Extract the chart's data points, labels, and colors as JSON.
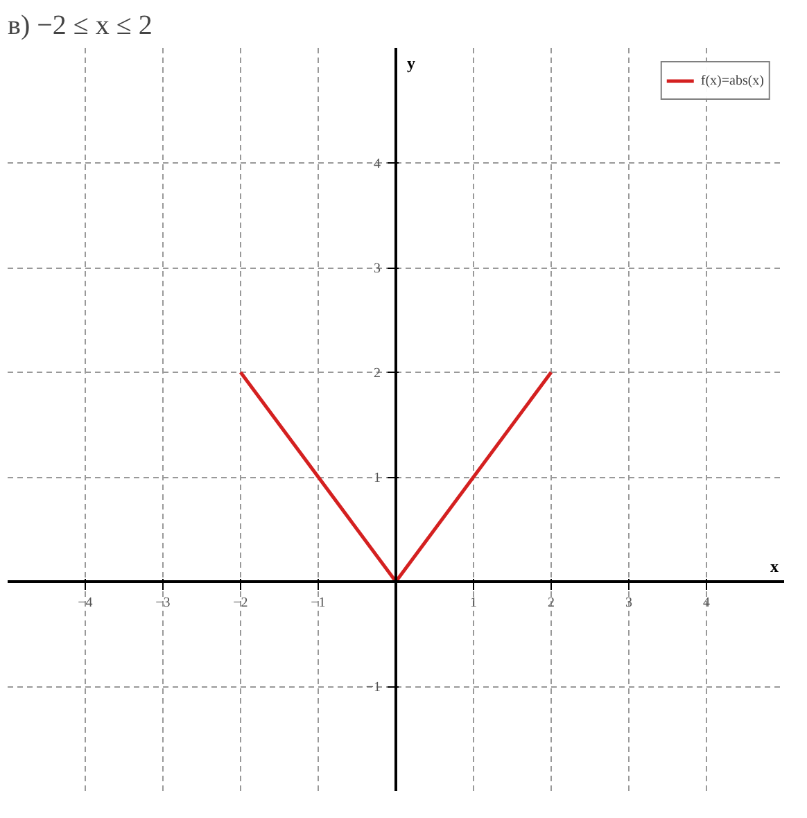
{
  "chart_data": {
    "type": "line",
    "title": "в) −2 ≤ x ≤ 2",
    "xlabel": "x",
    "ylabel": "y",
    "x": [
      -2,
      0,
      2
    ],
    "series": [
      {
        "name": "f(x)=abs(x)",
        "color": "#d42020",
        "values": [
          2,
          0,
          2
        ]
      }
    ],
    "xlim": [
      -5,
      5
    ],
    "ylim": [
      -2,
      5.1
    ],
    "xticks": [
      -4,
      -3,
      -2,
      -1,
      1,
      2,
      3,
      4
    ],
    "yticks": [
      -1,
      1,
      2,
      3,
      4
    ],
    "grid": true,
    "legend": "top right",
    "marker": "none",
    "line_style": "solid"
  }
}
